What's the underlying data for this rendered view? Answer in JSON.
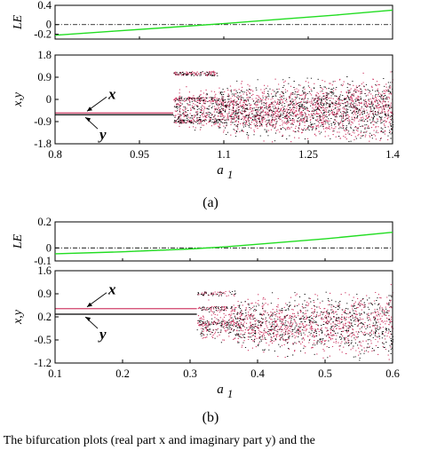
{
  "figure": {
    "caption": "4.   The bifurcation plots (real part x and imaginary part y) and the"
  },
  "chart_data": [
    {
      "type": "line",
      "panel_label": "(a)",
      "xlabel": "a1",
      "xlabel_main": "a",
      "xlabel_sub": "1",
      "xlim": [
        0.8,
        1.4
      ],
      "xticks": [
        "0.8",
        "0.95",
        "1.1",
        "1.25",
        "1.4"
      ],
      "lyapunov": {
        "ylabel": "LE",
        "ylim": [
          -0.3,
          0.4
        ],
        "yticks": [
          "0.4",
          "0",
          "-0.2"
        ],
        "ytick_values": [
          0.4,
          0,
          -0.2
        ],
        "color": "#22dd22",
        "x": [
          0.8,
          0.9,
          1.0,
          1.1,
          1.2,
          1.3,
          1.4
        ],
        "y": [
          -0.22,
          -0.14,
          -0.06,
          0.02,
          0.11,
          0.2,
          0.3
        ]
      },
      "bifurcation": {
        "ylabel": "x,y",
        "ylim": [
          -1.8,
          1.8
        ],
        "yticks": [
          "1.8",
          "0.9",
          "0",
          "-0.9",
          "-1.8"
        ],
        "ytick_values": [
          1.8,
          0.9,
          0,
          -0.9,
          -1.8
        ],
        "x_color": "#d0406a",
        "y_color": "#000000",
        "transition_a": 1.01,
        "x_fixed": -0.55,
        "y_fixed": -0.62,
        "x_label": "x",
        "y_label": "y"
      }
    },
    {
      "type": "line",
      "panel_label": "(b)",
      "xlabel": "a1",
      "xlabel_main": "a",
      "xlabel_sub": "1",
      "xlim": [
        0.1,
        0.6
      ],
      "xticks": [
        "0.1",
        "0.2",
        "0.3",
        "0.4",
        "0.5",
        "0.6"
      ],
      "lyapunov": {
        "ylabel": "LE",
        "ylim": [
          -0.1,
          0.2
        ],
        "yticks": [
          "0.2",
          "0",
          "-0.1"
        ],
        "ytick_values": [
          0.2,
          0,
          -0.1
        ],
        "color": "#22dd22",
        "x": [
          0.1,
          0.2,
          0.3,
          0.35,
          0.4,
          0.5,
          0.6
        ],
        "y": [
          -0.045,
          -0.03,
          -0.008,
          0.008,
          0.028,
          0.07,
          0.12
        ]
      },
      "bifurcation": {
        "ylabel": "x,y",
        "ylim": [
          -1.2,
          1.6
        ],
        "yticks": [
          "1.6",
          "0.9",
          "0.2",
          "-0.5",
          "-1.2"
        ],
        "ytick_values": [
          1.6,
          0.9,
          0.2,
          -0.5,
          -1.2
        ],
        "x_color": "#d0406a",
        "y_color": "#000000",
        "transition_a": 0.31,
        "x_fixed": 0.45,
        "y_fixed": 0.28,
        "x_label": "x",
        "y_label": "y"
      }
    }
  ]
}
